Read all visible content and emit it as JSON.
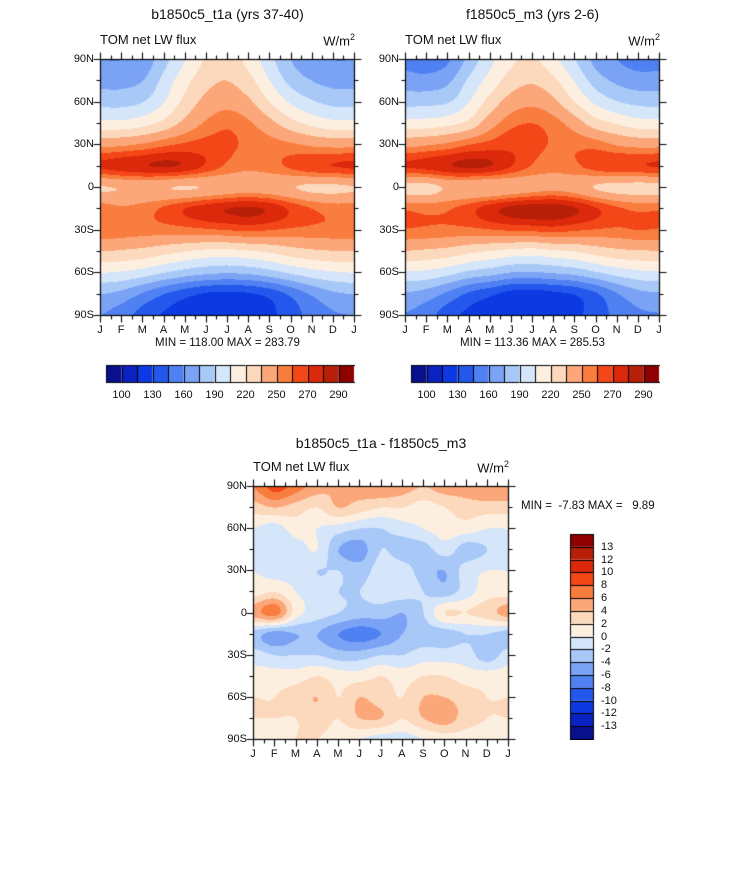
{
  "page": {
    "background": "#ffffff"
  },
  "months": [
    "J",
    "F",
    "M",
    "A",
    "M",
    "J",
    "J",
    "A",
    "S",
    "O",
    "N",
    "D",
    "J"
  ],
  "lat_tick_labels": [
    "90N",
    "60N",
    "30N",
    "0",
    "30S",
    "60S",
    "90S"
  ],
  "palette": [
    "#0a0f8e",
    "#0b22c3",
    "#0d39e2",
    "#2458ec",
    "#4f81f2",
    "#7ba3f5",
    "#a8c8f8",
    "#d5e5fa",
    "#fdefe0",
    "#fcd8bc",
    "#fba77a",
    "#fa7d40",
    "#f34717",
    "#dc290b",
    "#b71f08",
    "#8f0000"
  ],
  "chart_data": [
    {
      "id": "top-left",
      "type": "filled-contour",
      "title": "b1850c5_t1a (yrs 37-40)",
      "field_label": "TOM net LW flux",
      "units_base": "W/m",
      "units_exp": "2",
      "stats": "MIN = 118.00 MAX = 283.79",
      "xlabel": "month",
      "ylabel": "latitude",
      "lat_points": [
        90,
        75,
        60,
        45,
        30,
        15,
        0,
        -15,
        -30,
        -45,
        -60,
        -75,
        -90
      ],
      "levels": [
        100,
        115,
        130,
        145,
        160,
        175,
        190,
        205,
        220,
        235,
        250,
        260,
        270,
        280,
        290
      ],
      "colorbar_tick_labels": [
        "100",
        "130",
        "160",
        "190",
        "220",
        "250",
        "270",
        "290"
      ],
      "colorbar_orientation": "horizontal",
      "grid": [
        [
          160,
          160,
          165,
          185,
          205,
          222,
          228,
          215,
          195,
          175,
          165,
          160,
          160
        ],
        [
          170,
          170,
          175,
          195,
          215,
          230,
          235,
          225,
          205,
          185,
          175,
          170,
          170
        ],
        [
          185,
          185,
          190,
          205,
          225,
          240,
          245,
          238,
          220,
          203,
          192,
          186,
          185
        ],
        [
          210,
          210,
          215,
          225,
          240,
          252,
          258,
          252,
          240,
          226,
          216,
          210,
          210
        ],
        [
          246,
          248,
          252,
          258,
          262,
          264,
          262,
          258,
          255,
          252,
          248,
          246,
          246
        ],
        [
          272,
          276,
          279,
          281,
          278,
          268,
          258,
          253,
          256,
          262,
          268,
          270,
          272
        ],
        [
          234,
          236,
          238,
          236,
          234,
          236,
          240,
          242,
          240,
          236,
          232,
          232,
          234
        ],
        [
          256,
          252,
          255,
          262,
          270,
          276,
          280,
          282,
          278,
          268,
          260,
          256,
          256
        ],
        [
          258,
          256,
          255,
          255,
          256,
          258,
          260,
          262,
          260,
          258,
          257,
          257,
          258
        ],
        [
          235,
          233,
          230,
          225,
          220,
          216,
          215,
          218,
          222,
          228,
          232,
          234,
          235
        ],
        [
          205,
          203,
          198,
          190,
          183,
          178,
          176,
          178,
          184,
          192,
          199,
          203,
          205
        ],
        [
          175,
          170,
          158,
          145,
          135,
          128,
          126,
          128,
          135,
          148,
          162,
          172,
          175
        ],
        [
          160,
          152,
          138,
          128,
          122,
          118,
          118,
          120,
          126,
          138,
          150,
          158,
          160
        ]
      ]
    },
    {
      "id": "top-right",
      "type": "filled-contour",
      "title": "f1850c5_m3 (yrs 2-6)",
      "field_label": "TOM net LW flux",
      "units_base": "W/m",
      "units_exp": "2",
      "stats": "MIN = 113.36 MAX = 285.53",
      "xlabel": "month",
      "ylabel": "latitude",
      "lat_points": [
        90,
        75,
        60,
        45,
        30,
        15,
        0,
        -15,
        -30,
        -45,
        -60,
        -75,
        -90
      ],
      "levels": [
        100,
        115,
        130,
        145,
        160,
        175,
        190,
        205,
        220,
        235,
        250,
        260,
        270,
        280,
        290
      ],
      "colorbar_tick_labels": [
        "100",
        "130",
        "160",
        "190",
        "220",
        "250",
        "270",
        "290"
      ],
      "colorbar_orientation": "horizontal",
      "grid": [
        [
          154,
          151,
          158,
          180,
          201,
          217,
          222,
          210,
          191,
          170,
          160,
          154,
          154
        ],
        [
          167,
          166,
          172,
          193,
          211,
          227,
          233,
          223,
          204,
          183,
          172,
          167,
          167
        ],
        [
          185,
          186,
          189,
          205,
          226,
          242,
          247,
          239,
          220,
          202,
          191,
          186,
          185
        ],
        [
          211,
          212,
          216,
          225,
          244,
          257,
          260,
          255,
          243,
          227,
          219,
          212,
          211
        ],
        [
          246,
          249,
          253,
          260,
          264,
          267,
          263,
          259,
          258,
          256,
          249,
          246,
          246
        ],
        [
          271,
          274,
          279,
          282,
          280,
          270,
          259,
          254,
          258,
          265,
          269,
          269,
          271
        ],
        [
          229,
          229,
          237,
          237,
          236,
          239,
          243,
          246,
          242,
          234,
          230,
          229,
          229
        ],
        [
          259,
          257,
          259,
          266,
          276,
          283,
          286,
          286,
          281,
          271,
          262,
          258,
          259
        ],
        [
          259,
          258,
          257,
          257,
          259,
          261,
          262,
          264,
          261,
          259,
          258,
          260,
          259
        ],
        [
          234,
          232,
          229,
          223,
          219,
          215,
          213,
          217,
          220,
          226,
          231,
          233,
          234
        ],
        [
          203,
          201,
          195,
          186,
          181,
          174,
          173,
          176,
          180,
          188,
          196,
          201,
          203
        ],
        [
          173,
          168,
          156,
          142,
          133,
          124,
          122,
          126,
          131,
          143,
          159,
          170,
          173
        ],
        [
          159,
          151,
          136,
          126,
          121,
          118,
          119,
          121,
          126,
          137,
          149,
          157,
          159
        ]
      ]
    },
    {
      "id": "difference",
      "type": "filled-contour",
      "title": "b1850c5_t1a - f1850c5_m3",
      "field_label": "TOM net LW flux",
      "units_base": "W/m",
      "units_exp": "2",
      "stats": "MIN =  -7.83 MAX =   9.89",
      "xlabel": "month",
      "ylabel": "latitude",
      "lat_points": [
        90,
        75,
        60,
        45,
        30,
        15,
        0,
        -15,
        -30,
        -45,
        -60,
        -75,
        -90
      ],
      "levels": [
        -13,
        -12,
        -10,
        -8,
        -6,
        -4,
        -2,
        0,
        2,
        4,
        6,
        8,
        10,
        12,
        13
      ],
      "colorbar_tick_labels": [
        "13",
        "12",
        "10",
        "8",
        "6",
        "4",
        "2",
        "0",
        "-2",
        "-4",
        "-6",
        "-8",
        "-10",
        "-12",
        "-13"
      ],
      "colorbar_orientation": "vertical",
      "grid": [
        [
          6,
          9,
          7,
          5,
          4,
          5,
          6,
          5,
          4,
          5,
          5,
          6,
          6
        ],
        [
          3,
          4,
          3,
          2,
          4,
          3,
          2,
          2,
          1,
          2,
          3,
          3,
          3
        ],
        [
          0,
          -1,
          1,
          0,
          -1,
          -2,
          -2,
          -1,
          0,
          1,
          1,
          0,
          0
        ],
        [
          -1,
          -2,
          -1,
          0,
          -4,
          -5,
          -2,
          -3,
          -3,
          -1,
          -3,
          -2,
          -1
        ],
        [
          0,
          -1,
          -1,
          -2,
          -2,
          -3,
          -1,
          -1,
          -3,
          -4,
          -1,
          0,
          0
        ],
        [
          1,
          2,
          0,
          -1,
          -2,
          -2,
          -1,
          -1,
          -2,
          -3,
          -1,
          1,
          1
        ],
        [
          5,
          7,
          1,
          -1,
          -2,
          -3,
          -3,
          -4,
          -2,
          2,
          2,
          3,
          5
        ],
        [
          -3,
          -5,
          -4,
          -4,
          -6,
          -7,
          -6,
          -4,
          -3,
          -3,
          -2,
          -2,
          -3
        ],
        [
          -1,
          -2,
          -2,
          -2,
          -3,
          -3,
          -2,
          -2,
          -1,
          -1,
          -1,
          -3,
          -1
        ],
        [
          1,
          1,
          1,
          2,
          1,
          1,
          2,
          1,
          2,
          2,
          1,
          1,
          1
        ],
        [
          2,
          2,
          3,
          4,
          2,
          4,
          3,
          2,
          4,
          4,
          3,
          2,
          2
        ],
        [
          2,
          2,
          2,
          3,
          2,
          4,
          4,
          2,
          4,
          5,
          3,
          2,
          2
        ],
        [
          1,
          1,
          2,
          2,
          1,
          0,
          -1,
          -1,
          0,
          1,
          1,
          1,
          1
        ]
      ]
    }
  ]
}
